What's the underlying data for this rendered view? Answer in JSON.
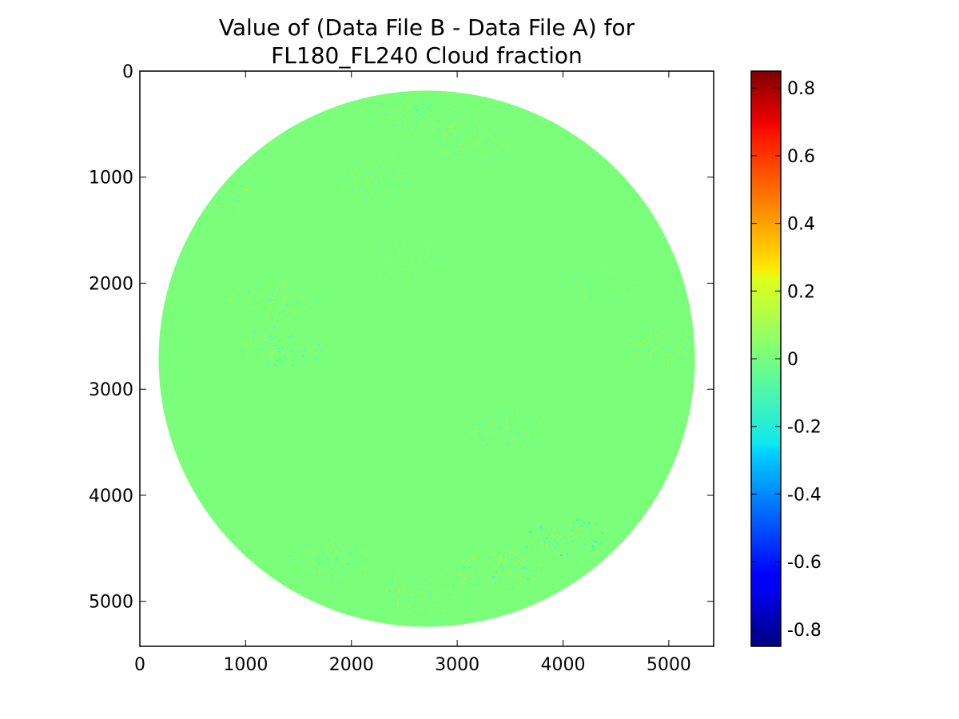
{
  "chart_data": {
    "type": "heatmap",
    "title_lines": [
      "Value of (Data File B - Data File A) for",
      "FL180_FL240 Cloud fraction"
    ],
    "xlabel": "",
    "ylabel": "",
    "xlim": [
      0,
      5424
    ],
    "ylim": [
      5424,
      0
    ],
    "x_ticks": [
      0,
      1000,
      2000,
      3000,
      4000,
      5000
    ],
    "y_ticks": [
      0,
      1000,
      2000,
      3000,
      4000,
      5000
    ],
    "disk": {
      "center_x": 2712,
      "center_y": 2712,
      "radius": 2535
    },
    "dominant_value": 0,
    "colorbar": {
      "colormap": "jet",
      "vmin": -0.85,
      "vmax": 0.85,
      "ticks": [
        -0.8,
        -0.6,
        -0.4,
        -0.2,
        0,
        0.2,
        0.4,
        0.6,
        0.8
      ],
      "tick_labels": [
        "-0.8",
        "-0.6",
        "-0.4",
        "-0.2",
        "0",
        "0.2",
        "0.4",
        "0.6",
        "0.8"
      ]
    },
    "speckle_regions": [
      {
        "x": 1350,
        "y": 2600,
        "value": -0.15
      },
      {
        "x": 1250,
        "y": 2150,
        "value": 0.12
      },
      {
        "x": 3150,
        "y": 650,
        "value": 0.1
      },
      {
        "x": 2600,
        "y": 350,
        "value": -0.12
      },
      {
        "x": 2200,
        "y": 1000,
        "value": 0.08
      },
      {
        "x": 3500,
        "y": 3400,
        "value": -0.1
      },
      {
        "x": 3400,
        "y": 4700,
        "value": 0.15
      },
      {
        "x": 4000,
        "y": 4400,
        "value": -0.2
      },
      {
        "x": 2700,
        "y": 4900,
        "value": 0.1
      },
      {
        "x": 1800,
        "y": 4600,
        "value": -0.1
      },
      {
        "x": 4900,
        "y": 2600,
        "value": 0.12
      },
      {
        "x": 700,
        "y": 1200,
        "value": -0.08
      },
      {
        "x": 2500,
        "y": 1800,
        "value": 0.05
      },
      {
        "x": 4300,
        "y": 2000,
        "value": -0.05
      }
    ]
  }
}
